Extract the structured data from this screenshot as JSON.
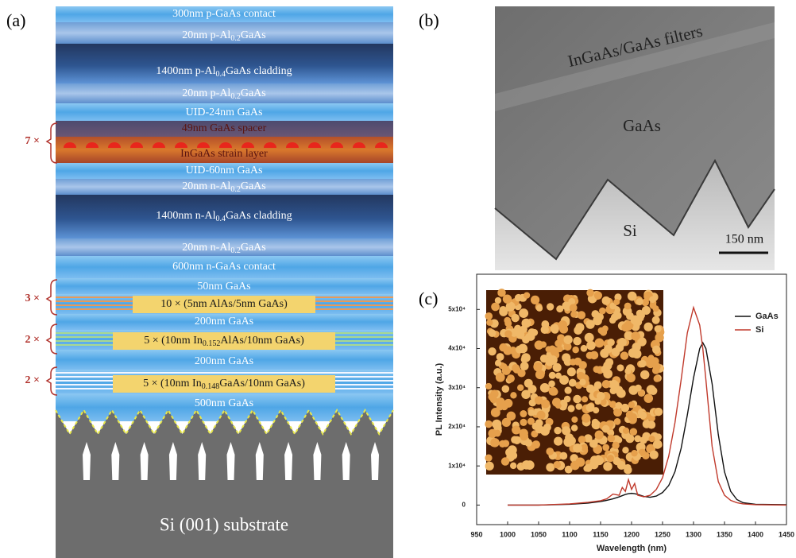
{
  "panel_a": {
    "label": "(a)",
    "layers": [
      {
        "text": "300nm p-GaAs contact"
      },
      {
        "pre": "20nm p-Al",
        "sub": "0.2",
        "post": "GaAs"
      },
      {
        "pre": "1400nm p-Al",
        "sub": "0.4",
        "post": "GaAs cladding"
      },
      {
        "pre": "20nm p-Al",
        "sub": "0.2",
        "post": "GaAs"
      },
      {
        "text": "UID-24nm GaAs"
      },
      {
        "text": "49nm GaAs spacer"
      },
      {
        "text": "InGaAs strain layer"
      },
      {
        "text": "UID-60nm GaAs"
      },
      {
        "pre": "20nm n-Al",
        "sub": "0.2",
        "post": "GaAs"
      },
      {
        "pre": "1400nm n-Al",
        "sub": "0.4",
        "post": "GaAs cladding"
      },
      {
        "pre": "20nm n-Al",
        "sub": "0.2",
        "post": "GaAs"
      },
      {
        "text": "600nm n-GaAs contact"
      },
      {
        "text": "50nm GaAs"
      },
      {
        "text": "10 × (5nm AlAs/5nm GaAs)"
      },
      {
        "text": "200nm GaAs"
      },
      {
        "pre": "5 × (10nm In",
        "sub": "0.152",
        "post": "AlAs/10nm GaAs)"
      },
      {
        "text": "200nm GaAs"
      },
      {
        "pre": "5 × (10nm In",
        "sub": "0.148",
        "post": "GaAs/10nm GaAs)"
      },
      {
        "text": "500nm GaAs"
      }
    ],
    "repeats": [
      "7 ×",
      "3 ×",
      "2 ×",
      "2 ×"
    ],
    "substrate": "Si (001) substrate"
  },
  "panel_b": {
    "label": "(b)",
    "filters": "InGaAs/GaAs filters",
    "gaas": "GaAs",
    "si": "Si",
    "scale": "150 nm"
  },
  "chart_data": {
    "type": "line",
    "label": "(c)",
    "x_label": "Wavelength (nm)",
    "y_label": "PL Intensity (a.u.)",
    "x": [
      1000,
      1050,
      1100,
      1130,
      1150,
      1160,
      1170,
      1180,
      1185,
      1190,
      1195,
      1200,
      1205,
      1210,
      1220,
      1230,
      1240,
      1250,
      1260,
      1270,
      1280,
      1290,
      1300,
      1310,
      1315,
      1320,
      1330,
      1340,
      1350,
      1360,
      1370,
      1380,
      1400,
      1450
    ],
    "series": [
      {
        "name": "GaAs",
        "color": "#111111",
        "values": [
          0,
          0,
          200,
          500,
          900,
          1200,
          1600,
          2100,
          2400,
          2700,
          2900,
          3000,
          2900,
          2700,
          2200,
          2000,
          2300,
          3200,
          5000,
          8500,
          14500,
          23000,
          32500,
          40000,
          41500,
          40000,
          31000,
          18000,
          8500,
          3500,
          1400,
          600,
          200,
          100
        ]
      },
      {
        "name": "Si",
        "color": "#c0392b",
        "values": [
          0,
          0,
          300,
          700,
          1100,
          1600,
          2800,
          2500,
          4500,
          3500,
          6500,
          4000,
          5500,
          2500,
          2100,
          2500,
          4000,
          7000,
          12500,
          21000,
          32000,
          44000,
          50500,
          46000,
          40000,
          32000,
          15000,
          6000,
          2500,
          1200,
          600,
          300,
          100,
          0
        ]
      }
    ],
    "xlim": [
      950,
      1450
    ],
    "ylim": [
      -5000,
      59000
    ],
    "xticks": [
      950,
      1000,
      1050,
      1100,
      1150,
      1200,
      1250,
      1300,
      1350,
      1400,
      1450
    ],
    "yticks": [
      0,
      {
        "value": 10000,
        "label": "1x10⁴"
      },
      {
        "value": 20000,
        "label": "2x10⁴"
      },
      {
        "value": 30000,
        "label": "3x10⁴"
      },
      {
        "value": 40000,
        "label": "4x10⁴"
      },
      {
        "value": 50000,
        "label": "5x10⁴"
      }
    ],
    "legend": "upper right",
    "grid": false
  }
}
